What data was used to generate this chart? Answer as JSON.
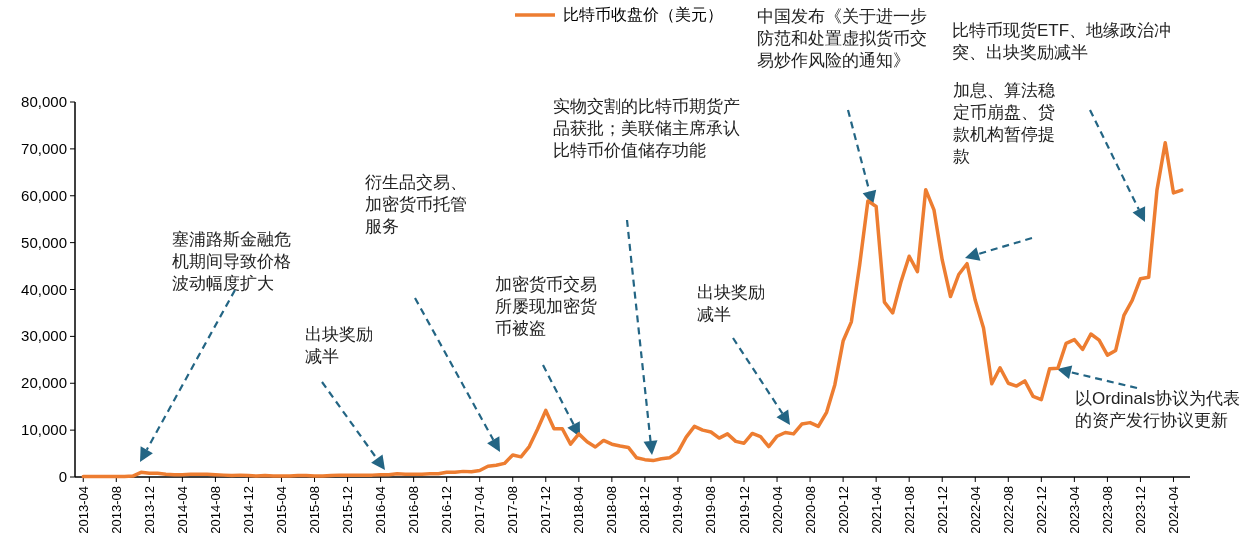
{
  "chart_data": {
    "type": "line",
    "legend": "top",
    "grid": false,
    "marker": "none",
    "line_style": "solid",
    "x": [
      "2013-04",
      "2013-05",
      "2013-06",
      "2013-07",
      "2013-08",
      "2013-09",
      "2013-10",
      "2013-11",
      "2013-12",
      "2014-01",
      "2014-02",
      "2014-03",
      "2014-04",
      "2014-05",
      "2014-06",
      "2014-07",
      "2014-08",
      "2014-09",
      "2014-10",
      "2014-11",
      "2014-12",
      "2015-01",
      "2015-02",
      "2015-03",
      "2015-04",
      "2015-05",
      "2015-06",
      "2015-07",
      "2015-08",
      "2015-09",
      "2015-10",
      "2015-11",
      "2015-12",
      "2016-01",
      "2016-02",
      "2016-03",
      "2016-04",
      "2016-05",
      "2016-06",
      "2016-07",
      "2016-08",
      "2016-09",
      "2016-10",
      "2016-11",
      "2016-12",
      "2017-01",
      "2017-02",
      "2017-03",
      "2017-04",
      "2017-05",
      "2017-06",
      "2017-07",
      "2017-08",
      "2017-09",
      "2017-10",
      "2017-11",
      "2017-12",
      "2018-01",
      "2018-02",
      "2018-03",
      "2018-04",
      "2018-05",
      "2018-06",
      "2018-07",
      "2018-08",
      "2018-09",
      "2018-10",
      "2018-11",
      "2018-12",
      "2019-01",
      "2019-02",
      "2019-03",
      "2019-04",
      "2019-05",
      "2019-06",
      "2019-07",
      "2019-08",
      "2019-09",
      "2019-10",
      "2019-11",
      "2019-12",
      "2020-01",
      "2020-02",
      "2020-03",
      "2020-04",
      "2020-05",
      "2020-06",
      "2020-07",
      "2020-08",
      "2020-09",
      "2020-10",
      "2020-11",
      "2020-12",
      "2021-01",
      "2021-02",
      "2021-03",
      "2021-04",
      "2021-05",
      "2021-06",
      "2021-07",
      "2021-08",
      "2021-09",
      "2021-10",
      "2021-11",
      "2021-12",
      "2022-01",
      "2022-02",
      "2022-03",
      "2022-04",
      "2022-05",
      "2022-06",
      "2022-07",
      "2022-08",
      "2022-09",
      "2022-10",
      "2022-11",
      "2022-12",
      "2023-01",
      "2023-02",
      "2023-03",
      "2023-04",
      "2023-05",
      "2023-06",
      "2023-07",
      "2023-08",
      "2023-09",
      "2023-10",
      "2023-11",
      "2023-12",
      "2024-01",
      "2024-02",
      "2024-03",
      "2024-04",
      "2024-05"
    ],
    "series": [
      {
        "name": "比特币收盘价（美元）",
        "color": "#ed7d31",
        "values": [
          100,
          100,
          100,
          100,
          100,
          100,
          200,
          1000,
          800,
          800,
          600,
          500,
          500,
          600,
          600,
          600,
          500,
          400,
          300,
          400,
          300,
          200,
          300,
          200,
          200,
          200,
          300,
          300,
          200,
          200,
          300,
          400,
          400,
          400,
          400,
          400,
          500,
          500,
          700,
          600,
          600,
          600,
          700,
          700,
          1000,
          1000,
          1200,
          1100,
          1400,
          2300,
          2500,
          2900,
          4700,
          4300,
          6500,
          10200,
          14200,
          10300,
          10300,
          7000,
          9200,
          7500,
          6400,
          7800,
          7000,
          6600,
          6300,
          4100,
          3700,
          3500,
          3900,
          4100,
          5300,
          8500,
          10800,
          10000,
          9600,
          8300,
          9200,
          7600,
          7200,
          9300,
          8600,
          6500,
          8700,
          9500,
          9200,
          11300,
          11600,
          10800,
          13800,
          19700,
          29000,
          33100,
          45200,
          58900,
          57700,
          37300,
          35000,
          41600,
          47100,
          43800,
          61300,
          57000,
          46300,
          38500,
          43200,
          45500,
          37700,
          31800,
          19900,
          23300,
          20000,
          19400,
          20500,
          17200,
          16500,
          23100,
          23200,
          28500,
          29300,
          27200,
          30500,
          29200,
          26000,
          27000,
          34500,
          37700,
          42300,
          42600,
          61200,
          71300,
          60600,
          61200
        ]
      }
    ],
    "xlim": [
      "2013-03",
      "2024-06"
    ],
    "xticks": [
      "2013-04",
      "2013-08",
      "2013-12",
      "2014-04",
      "2014-08",
      "2014-12",
      "2015-04",
      "2015-08",
      "2015-12",
      "2016-04",
      "2016-08",
      "2016-12",
      "2017-04",
      "2017-08",
      "2017-12",
      "2018-04",
      "2018-08",
      "2018-12",
      "2019-04",
      "2019-08",
      "2019-12",
      "2020-04",
      "2020-08",
      "2020-12",
      "2021-04",
      "2021-08",
      "2021-12",
      "2022-04",
      "2022-08",
      "2022-12",
      "2023-04",
      "2023-08",
      "2023-12",
      "2024-04"
    ],
    "ylim": [
      0,
      80000
    ],
    "yticks": [
      0,
      {
        "value": 10000,
        "label": "10,000"
      },
      {
        "value": 20000,
        "label": "20,000"
      },
      {
        "value": 30000,
        "label": "30,000"
      },
      {
        "value": 40000,
        "label": "40,000"
      },
      {
        "value": 50000,
        "label": "50,000"
      },
      {
        "value": 60000,
        "label": "60,000"
      },
      {
        "value": 70000,
        "label": "70,000"
      },
      {
        "value": 80000,
        "label": "80,000"
      }
    ],
    "annotations": [
      "塞浦路斯金融危机期间导致价格波动幅度扩大",
      "出块奖励减半",
      "衍生品交易、加密货币托管服务",
      "加密货币交易所屡现加密货币被盗",
      "实物交割的比特币期货产品获批；美联储主席承认比特币价值储存功能",
      "出块奖励减半",
      "中国发布《关于进一步防范和处置虚拟货币交易炒作风险的通知》",
      "加息、算法稳定币崩盘、贷款机构暂停提款",
      "比特币现货ETF、地缘政治冲突、出块奖励减半",
      "以Ordinals协议为代表的资产发行协议更新"
    ]
  }
}
